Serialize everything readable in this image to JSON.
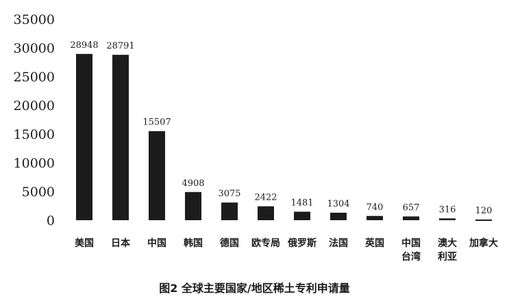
{
  "chart_data": {
    "type": "bar",
    "title": "",
    "caption": "图2   全球主要国家/地区稀土专利申请量",
    "xlabel": "",
    "ylabel": "",
    "ylim": [
      0,
      35000
    ],
    "yticks": [
      0,
      5000,
      10000,
      15000,
      20000,
      25000,
      30000,
      35000
    ],
    "grid": false,
    "legend": "none",
    "bar_color": "#1c1c1c",
    "categories": [
      [
        "美国"
      ],
      [
        "日本"
      ],
      [
        "中国"
      ],
      [
        "韩国"
      ],
      [
        "德国"
      ],
      [
        "欧专局"
      ],
      [
        "俄罗斯"
      ],
      [
        "法国"
      ],
      [
        "英国"
      ],
      [
        "中国",
        "台湾"
      ],
      [
        "澳大",
        "利亚"
      ],
      [
        "加拿大"
      ]
    ],
    "values": [
      28948,
      28791,
      15507,
      4908,
      3075,
      2422,
      1481,
      1304,
      740,
      657,
      316,
      120
    ],
    "value_labels": [
      "28948",
      "28791",
      "15507",
      "4908",
      "3075",
      "2422",
      "1481",
      "1304",
      "740",
      "657",
      "316",
      "120"
    ]
  }
}
